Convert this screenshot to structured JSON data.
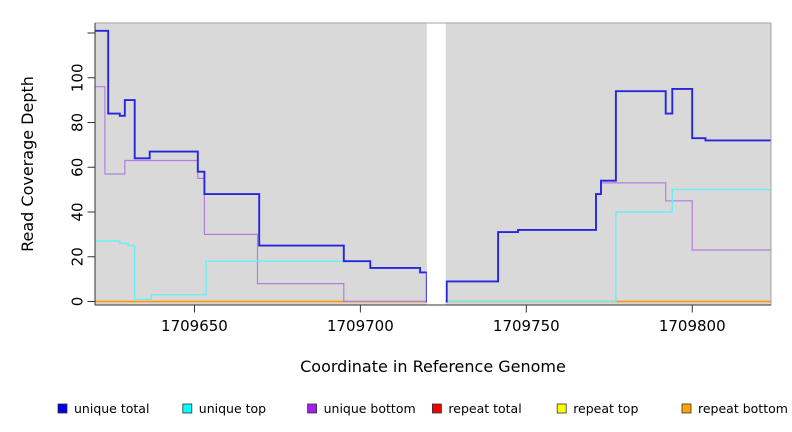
{
  "page": {
    "background": "#ffffff",
    "plot_background": "#d9d9d9"
  },
  "y_axis": {
    "title": "Read Coverage Depth",
    "ticks": [
      {
        "value": 0,
        "label": "0"
      },
      {
        "value": 20,
        "label": "20"
      },
      {
        "value": 40,
        "label": "40"
      },
      {
        "value": 60,
        "label": "60"
      },
      {
        "value": 80,
        "label": "80"
      },
      {
        "value": 100,
        "label": "100"
      },
      {
        "value": 120,
        "label": ""
      }
    ]
  },
  "x_axis": {
    "title": "Coordinate in Reference Genome",
    "ticks": [
      {
        "value": 1709650,
        "label": "1709650"
      },
      {
        "value": 1709700,
        "label": "1709700"
      },
      {
        "value": 1709750,
        "label": "1709750"
      },
      {
        "value": 1709800,
        "label": "1709800"
      }
    ]
  },
  "chart_data": {
    "type": "line",
    "step_style": "step-after",
    "title": "",
    "xlabel": "Coordinate in Reference Genome",
    "ylabel": "Read Coverage Depth",
    "x_range": [
      1709620,
      1709824
    ],
    "y_range": [
      0,
      126
    ],
    "grid": false,
    "masked_gap": {
      "x_start": 1709720,
      "x_end": 1709725.7,
      "color": "#ffffff"
    },
    "series": [
      {
        "name": "repeat total",
        "line_color": "#ee2222",
        "width": 1.0,
        "points": [
          [
            1709620,
            0
          ],
          [
            1709824,
            0
          ]
        ]
      },
      {
        "name": "repeat top",
        "line_color": "#ffff00",
        "width": 1.0,
        "points": [
          [
            1709620,
            0
          ],
          [
            1709824,
            0
          ]
        ]
      },
      {
        "name": "repeat bottom",
        "line_color": "#ff9912",
        "width": 1.8,
        "points": [
          [
            1709620,
            0
          ],
          [
            1709824,
            0
          ]
        ]
      },
      {
        "name": "unique bottom",
        "line_color": "#b27edc",
        "width": 1.2,
        "points": [
          [
            1709620,
            96
          ],
          [
            1709623,
            57
          ],
          [
            1709629,
            63
          ],
          [
            1709651,
            55
          ],
          [
            1709653,
            30
          ],
          [
            1709669,
            8
          ],
          [
            1709695,
            0
          ],
          [
            1709720,
            0
          ],
          [
            1709726,
            9
          ],
          [
            1709741.5,
            31
          ],
          [
            1709747.5,
            32
          ],
          [
            1709771,
            48
          ],
          [
            1709772.5,
            53
          ],
          [
            1709792,
            45
          ],
          [
            1709800,
            23
          ],
          [
            1709824,
            23
          ]
        ]
      },
      {
        "name": "unique top",
        "line_color": "#6ceef5",
        "width": 1.4,
        "points": [
          [
            1709620,
            27
          ],
          [
            1709627.5,
            26
          ],
          [
            1709630,
            25
          ],
          [
            1709632,
            1
          ],
          [
            1709637,
            3
          ],
          [
            1709653.5,
            18
          ],
          [
            1709703,
            15
          ],
          [
            1709718,
            13
          ],
          [
            1709720,
            0
          ],
          [
            1709777,
            40
          ],
          [
            1709794,
            50
          ],
          [
            1709824,
            50
          ]
        ]
      },
      {
        "name": "unique total",
        "line_color": "#2626e0",
        "width": 1.9,
        "points": [
          [
            1709620,
            121
          ],
          [
            1709624,
            84
          ],
          [
            1709627.5,
            83
          ],
          [
            1709629,
            90
          ],
          [
            1709632,
            64
          ],
          [
            1709636.5,
            67
          ],
          [
            1709651,
            58
          ],
          [
            1709653,
            48
          ],
          [
            1709669.5,
            25
          ],
          [
            1709695,
            18
          ],
          [
            1709703,
            15
          ],
          [
            1709718,
            13
          ],
          [
            1709720,
            0
          ],
          [
            1709726,
            9
          ],
          [
            1709741.5,
            31
          ],
          [
            1709747.5,
            32
          ],
          [
            1709771,
            48
          ],
          [
            1709772.5,
            54
          ],
          [
            1709777,
            94
          ],
          [
            1709792,
            84
          ],
          [
            1709794,
            95
          ],
          [
            1709800,
            73
          ],
          [
            1709804,
            72
          ],
          [
            1709824,
            72
          ]
        ]
      }
    ]
  },
  "legend": {
    "items": [
      {
        "label": "unique total",
        "color": "#0000e0"
      },
      {
        "label": "unique top",
        "color": "#00ffff"
      },
      {
        "label": "unique bottom",
        "color": "#a020f0"
      },
      {
        "label": "repeat total",
        "color": "#ee0000"
      },
      {
        "label": "repeat top",
        "color": "#ffff00"
      },
      {
        "label": "repeat bottom",
        "color": "#ffa500"
      }
    ]
  }
}
